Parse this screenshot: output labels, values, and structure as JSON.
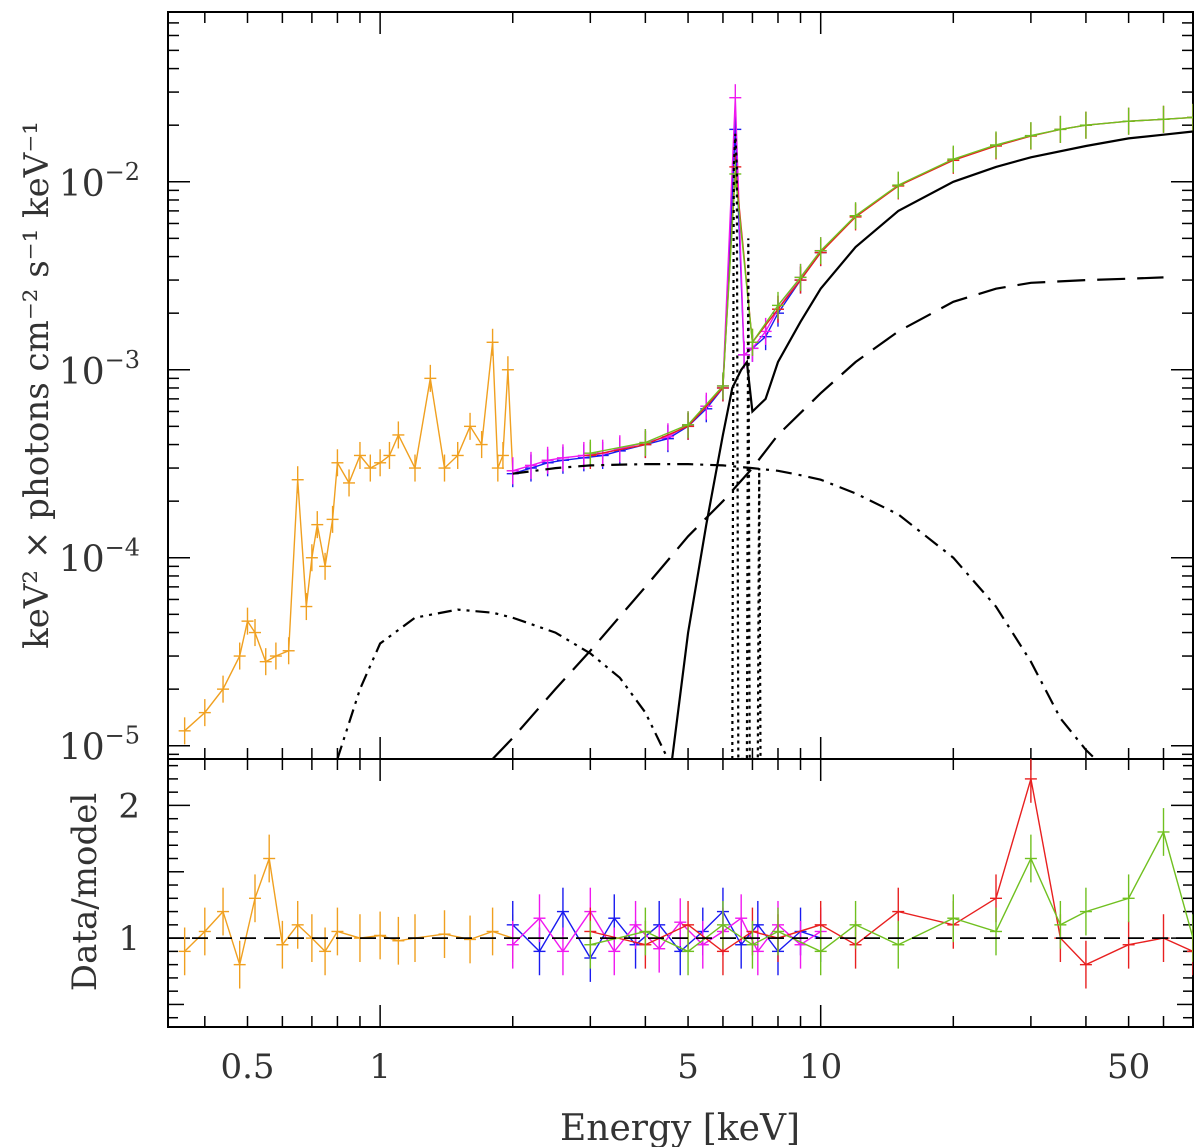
{
  "chart_data": [
    {
      "type": "scatter",
      "panel": "spectrum",
      "xscale": "log",
      "yscale": "log",
      "xlim": [
        0.33,
        70
      ],
      "ylim": [
        8.5e-06,
        0.08
      ],
      "xlabel": "Energy [keV]",
      "ylabel": "keV² × photons cm⁻² s⁻¹ keV⁻¹",
      "y_tick_labels": [
        {
          "value": 1e-05,
          "base": "10",
          "exp": "−5"
        },
        {
          "value": 0.0001,
          "base": "10",
          "exp": "−4"
        },
        {
          "value": 0.001,
          "base": "10",
          "exp": "−3"
        },
        {
          "value": 0.01,
          "base": "10",
          "exp": "−2"
        }
      ],
      "series": [
        {
          "color": "#f0a020",
          "x": [
            0.36,
            0.4,
            0.44,
            0.48,
            0.5,
            0.52,
            0.55,
            0.58,
            0.62,
            0.65,
            0.68,
            0.7,
            0.72,
            0.75,
            0.78,
            0.8,
            0.85,
            0.9,
            0.95,
            1.0,
            1.05,
            1.1,
            1.2,
            1.3,
            1.4,
            1.5,
            1.6,
            1.7,
            1.8,
            1.85,
            1.9,
            1.95,
            2.0
          ],
          "y": [
            1.2e-05,
            1.5e-05,
            2e-05,
            3e-05,
            4.6e-05,
            4e-05,
            2.8e-05,
            3e-05,
            3.2e-05,
            0.00026,
            5.5e-05,
            0.0001,
            0.00015,
            9e-05,
            0.00016,
            0.00032,
            0.00025,
            0.00035,
            0.0003,
            0.00032,
            0.00035,
            0.00045,
            0.0003,
            0.0009,
            0.0003,
            0.00035,
            0.0005,
            0.0004,
            0.0014,
            0.0003,
            0.00035,
            0.001,
            0.00029
          ]
        },
        {
          "color": "#1a1af0",
          "x": [
            2.0,
            2.2,
            2.4,
            2.6,
            2.9,
            3.2,
            3.5,
            4.0,
            4.5,
            5.0,
            5.5,
            6.0,
            6.4,
            6.7,
            7.0,
            7.5,
            8.0,
            9.0,
            10.0
          ],
          "y": [
            0.00028,
            0.0003,
            0.00032,
            0.00033,
            0.00034,
            0.00035,
            0.00037,
            0.0004,
            0.00043,
            0.0005,
            0.00062,
            0.0008,
            0.019,
            0.0012,
            0.0013,
            0.0015,
            0.002,
            0.003,
            0.0042
          ]
        },
        {
          "color": "#f018f0",
          "x": [
            2.0,
            2.2,
            2.4,
            2.6,
            2.9,
            3.2,
            3.5,
            4.0,
            4.5,
            5.0,
            5.5,
            6.0,
            6.4,
            6.7,
            7.0,
            7.5,
            8.0,
            9.0,
            10.0
          ],
          "y": [
            0.00029,
            0.00031,
            0.00033,
            0.00034,
            0.00035,
            0.00036,
            0.00038,
            0.00041,
            0.00044,
            0.00051,
            0.00064,
            0.00082,
            0.028,
            0.0012,
            0.0013,
            0.0016,
            0.0021,
            0.0031,
            0.0043
          ]
        },
        {
          "color": "#e82020",
          "x": [
            3,
            4,
            5,
            6,
            6.4,
            7,
            8,
            9,
            10,
            12,
            15,
            20,
            25,
            30,
            35,
            40,
            50,
            60,
            70
          ],
          "y": [
            0.00035,
            0.0004,
            0.0005,
            0.0008,
            0.012,
            0.0014,
            0.0021,
            0.003,
            0.0042,
            0.0065,
            0.0095,
            0.013,
            0.0155,
            0.0175,
            0.019,
            0.02,
            0.021,
            0.0215,
            0.022
          ]
        },
        {
          "color": "#70c020",
          "x": [
            3,
            4,
            5,
            6,
            6.4,
            7,
            8,
            9,
            10,
            12,
            15,
            20,
            25,
            30,
            35,
            40,
            50,
            60,
            70
          ],
          "y": [
            0.00036,
            0.00041,
            0.00051,
            0.00082,
            0.011,
            0.0014,
            0.0022,
            0.0031,
            0.0043,
            0.0066,
            0.0096,
            0.0132,
            0.0157,
            0.0176,
            0.019,
            0.02,
            0.021,
            0.0215,
            0.022
          ]
        }
      ],
      "model_components": [
        {
          "style": "solid",
          "x": [
            4.6,
            5.0,
            5.5,
            6.0,
            6.3,
            6.6,
            6.8,
            7.0,
            7.5,
            8.0,
            9,
            10,
            12,
            15,
            20,
            25,
            30,
            40,
            50,
            60,
            70
          ],
          "y": [
            8.5e-06,
            4e-05,
            0.00015,
            0.00045,
            0.0008,
            0.001,
            0.0011,
            0.0006,
            0.0007,
            0.0011,
            0.0018,
            0.0027,
            0.0045,
            0.007,
            0.01,
            0.012,
            0.0135,
            0.0155,
            0.017,
            0.0178,
            0.0185
          ]
        },
        {
          "style": "longdash",
          "x": [
            1.8,
            2.0,
            2.5,
            3.0,
            4.0,
            5.0,
            6.0,
            7.0,
            8.0,
            10,
            12,
            15,
            20,
            25,
            30,
            40,
            50,
            60
          ],
          "y": [
            8.5e-06,
            1.1e-05,
            2e-05,
            3.2e-05,
            7e-05,
            0.00013,
            0.0002,
            0.0003,
            0.00045,
            0.00075,
            0.0011,
            0.0016,
            0.0023,
            0.0027,
            0.0029,
            0.003,
            0.00305,
            0.0031
          ]
        },
        {
          "style": "dashdot",
          "x": [
            2.0,
            2.5,
            3.0,
            4.0,
            5.0,
            6.0,
            7.0,
            8.0,
            9.0,
            10,
            12,
            15,
            20,
            25,
            30,
            35,
            40,
            42
          ],
          "y": [
            0.00028,
            0.0003,
            0.00031,
            0.000315,
            0.000315,
            0.00031,
            0.0003,
            0.00029,
            0.000275,
            0.00026,
            0.00022,
            0.00017,
            0.0001,
            5.5e-05,
            2.8e-05,
            1.4e-05,
            9.5e-06,
            8.5e-06
          ]
        },
        {
          "style": "dashdotdot",
          "x": [
            0.8,
            0.9,
            1.0,
            1.2,
            1.5,
            1.8,
            2.0,
            2.5,
            3.0,
            3.5,
            4.0,
            4.5
          ],
          "y": [
            8.5e-06,
            2e-05,
            3.5e-05,
            4.8e-05,
            5.3e-05,
            5.1e-05,
            4.8e-05,
            4e-05,
            3.1e-05,
            2.3e-05,
            1.5e-05,
            8.5e-06
          ]
        },
        {
          "style": "dotted",
          "x": [
            6.3,
            6.35,
            6.4,
            6.45,
            6.5,
            6.8,
            6.85,
            6.9,
            7.2,
            7.25,
            7.3
          ],
          "y": [
            8.5e-06,
            0.012,
            0.018,
            0.012,
            8.5e-06,
            8.5e-06,
            0.005,
            8.5e-06,
            8.5e-06,
            0.0003,
            8.5e-06
          ]
        }
      ]
    },
    {
      "type": "scatter",
      "panel": "ratio",
      "xscale": "log",
      "xlim": [
        0.33,
        70
      ],
      "ylim": [
        0.33,
        2.35
      ],
      "ylabel": "Data/model",
      "y_tick_labels": [
        {
          "value": 1,
          "label": "1"
        },
        {
          "value": 2,
          "label": "2"
        }
      ],
      "x_tick_labels": [
        {
          "value": 0.5,
          "label": "0.5"
        },
        {
          "value": 1,
          "label": "1"
        },
        {
          "value": 5,
          "label": "5"
        },
        {
          "value": 10,
          "label": "10"
        },
        {
          "value": 50,
          "label": "50"
        }
      ],
      "reference_line": 1,
      "series": [
        {
          "color": "#f0a020",
          "x": [
            0.36,
            0.4,
            0.44,
            0.48,
            0.52,
            0.56,
            0.6,
            0.65,
            0.7,
            0.75,
            0.8,
            0.9,
            1.0,
            1.1,
            1.2,
            1.4,
            1.6,
            1.8,
            2.0
          ],
          "y": [
            0.9,
            1.05,
            1.2,
            0.8,
            1.3,
            1.6,
            0.95,
            1.1,
            1.0,
            0.9,
            1.05,
            1.0,
            1.02,
            0.98,
            1.0,
            1.03,
            0.99,
            1.05,
            1.0
          ]
        },
        {
          "color": "#1a1af0",
          "x": [
            2.0,
            2.3,
            2.6,
            3.0,
            3.4,
            3.8,
            4.3,
            4.8,
            5.4,
            6.0,
            6.6,
            7.2,
            8.0,
            9.0,
            10.0
          ],
          "y": [
            1.1,
            0.9,
            1.2,
            0.85,
            1.15,
            0.95,
            1.1,
            0.9,
            1.05,
            1.2,
            0.95,
            1.1,
            0.9,
            1.05,
            1.0
          ]
        },
        {
          "color": "#f018f0",
          "x": [
            2.0,
            2.3,
            2.6,
            3.0,
            3.4,
            3.8,
            4.3,
            4.8,
            5.4,
            6.0,
            6.6,
            7.2,
            8.0,
            9.0,
            10.0
          ],
          "y": [
            0.95,
            1.15,
            0.9,
            1.2,
            0.9,
            1.1,
            0.92,
            1.12,
            0.95,
            1.05,
            1.15,
            0.9,
            1.1,
            0.95,
            1.05
          ]
        },
        {
          "color": "#e82020",
          "x": [
            3,
            4,
            5,
            6,
            7,
            8,
            10,
            12,
            15,
            20,
            25,
            30,
            35,
            40,
            50,
            60,
            70
          ],
          "y": [
            1.05,
            0.95,
            1.1,
            0.9,
            1.05,
            1.0,
            1.1,
            0.95,
            1.2,
            1.1,
            1.3,
            2.2,
            1.0,
            0.8,
            0.95,
            1.0,
            0.9
          ]
        },
        {
          "color": "#70c020",
          "x": [
            3,
            4,
            5,
            6,
            7,
            8,
            10,
            12,
            15,
            20,
            25,
            30,
            35,
            40,
            50,
            60,
            70
          ],
          "y": [
            0.95,
            1.05,
            0.9,
            1.1,
            0.95,
            1.05,
            0.9,
            1.1,
            0.95,
            1.15,
            1.05,
            1.6,
            1.1,
            1.2,
            1.3,
            1.8,
            1.0
          ]
        }
      ]
    }
  ]
}
